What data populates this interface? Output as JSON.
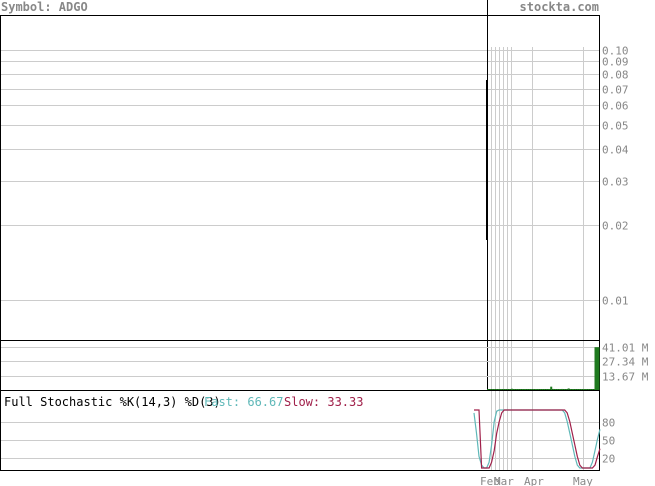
{
  "header": {
    "symbol_label": "Symbol: ADGO",
    "site": "stockta.com"
  },
  "chart_data": [
    {
      "type": "line",
      "panel": "price",
      "y_scale": "log",
      "ylim": [
        0.005,
        0.12
      ],
      "y_ticks": [
        "0.10",
        "0.09",
        "0.08",
        "0.07",
        "0.06",
        "0.05",
        "0.04",
        "0.03",
        "0.02",
        "0.01"
      ],
      "y_tick_values": [
        0.1,
        0.09,
        0.08,
        0.07,
        0.06,
        0.05,
        0.04,
        0.03,
        0.02,
        0.01
      ],
      "grid": true,
      "x_tick_labels": [
        "Feb",
        "Mar",
        "Apr",
        "May"
      ],
      "series": []
    },
    {
      "type": "bar",
      "panel": "volume",
      "y_ticks": [
        "41.01 M",
        "27.34 M",
        "13.67 M"
      ],
      "y_tick_values": [
        41.01,
        27.34,
        13.67
      ],
      "ylim": [
        0,
        45
      ],
      "unit": "M",
      "values": [
        0.3,
        0.2,
        0.2,
        0.3,
        0.4,
        0.5,
        0.8,
        0.3,
        0.4,
        0.5,
        0.6,
        1.2,
        0.8,
        0.6,
        0.5,
        0.7,
        0.6,
        0.5,
        0.4,
        0.3,
        0.5,
        0.6,
        0.4,
        0.7,
        0.5,
        0.3,
        0.5,
        0.4,
        0.6,
        3.2,
        1.0,
        0.8,
        0.5,
        0.7,
        1.0,
        0.6,
        0.8,
        1.5,
        0.6,
        0.5,
        0.4,
        0.3,
        0.5,
        0.6,
        0.7,
        0.5,
        0.3,
        0.4,
        0.5,
        0.6,
        41.0
      ]
    },
    {
      "type": "line",
      "panel": "stochastic",
      "title": "Full Stochastic %K(14,3) %D(3)",
      "fast_label": "Fast: 66.67",
      "slow_label": "Slow: 33.33",
      "y_ticks": [
        "80",
        "50",
        "20"
      ],
      "y_tick_values": [
        80,
        50,
        20
      ],
      "ylim": [
        0,
        100
      ],
      "x_tick_labels": [
        "Feb",
        "Mar",
        "Apr",
        "May"
      ],
      "series": [
        {
          "name": "Fast",
          "color": "#5fb8b8",
          "values": [
            95,
            60,
            20,
            5,
            0,
            0,
            10,
            40,
            80,
            98,
            100,
            100,
            100,
            100,
            100,
            100,
            100,
            100,
            100,
            100,
            100,
            100,
            100,
            100,
            100,
            100,
            100,
            100,
            100,
            100,
            100,
            100,
            100,
            100,
            100,
            100,
            95,
            80,
            60,
            40,
            20,
            5,
            0,
            0,
            0,
            0,
            0,
            10,
            30,
            50,
            66.67
          ]
        },
        {
          "name": "Slow",
          "color": "#a0204a",
          "values": [
            100,
            100,
            100,
            0,
            0,
            0,
            0,
            10,
            30,
            60,
            80,
            95,
            100,
            100,
            100,
            100,
            100,
            100,
            100,
            100,
            100,
            100,
            100,
            100,
            100,
            100,
            100,
            100,
            100,
            100,
            100,
            100,
            100,
            100,
            100,
            100,
            100,
            95,
            80,
            60,
            40,
            20,
            5,
            0,
            0,
            0,
            0,
            0,
            5,
            20,
            33.33
          ]
        }
      ]
    }
  ],
  "colors": {
    "volume_bar": "#1f7a1f",
    "grid": "#cccccc",
    "border": "#000000",
    "label": "#888888"
  }
}
